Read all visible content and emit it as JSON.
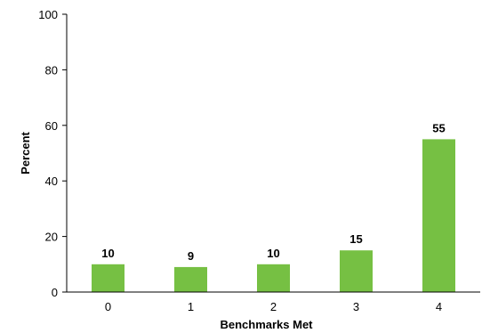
{
  "chart_data": {
    "type": "bar",
    "categories": [
      "0",
      "1",
      "2",
      "3",
      "4"
    ],
    "values": [
      10,
      9,
      10,
      15,
      55
    ],
    "data_labels": [
      "10",
      "9",
      "10",
      "15",
      "55"
    ],
    "xlabel": "Benchmarks Met",
    "ylabel": "Percent",
    "ylim": [
      0,
      100
    ],
    "yticks": [
      "0",
      "20",
      "40",
      "60",
      "80",
      "100"
    ],
    "grid": false,
    "bar_color": "#76c043"
  }
}
